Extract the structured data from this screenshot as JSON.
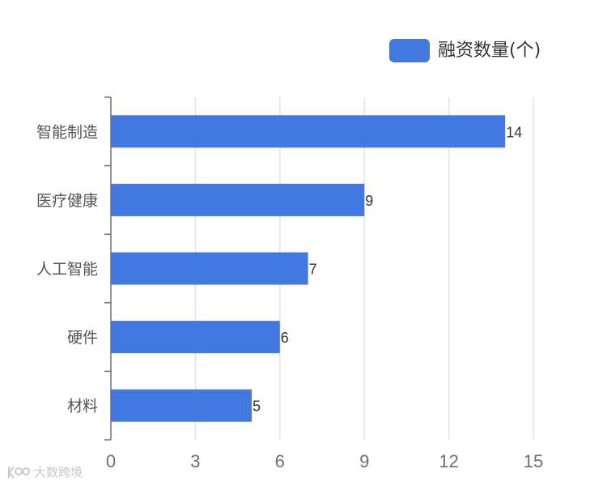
{
  "chart_data": {
    "type": "bar",
    "orientation": "horizontal",
    "categories": [
      "智能制造",
      "医疗健康",
      "人工智能",
      "硬件",
      "材料"
    ],
    "series": [
      {
        "name": "融资数量(个)",
        "values": [
          14,
          9,
          7,
          6,
          5
        ],
        "color": "#4278E0"
      }
    ],
    "xlim": [
      0,
      15
    ],
    "xticks": [
      0,
      3,
      6,
      9,
      12,
      15
    ],
    "grid": true,
    "legend_position": "top-right",
    "data_labels": true
  },
  "watermark": {
    "text": "大数跨境"
  }
}
